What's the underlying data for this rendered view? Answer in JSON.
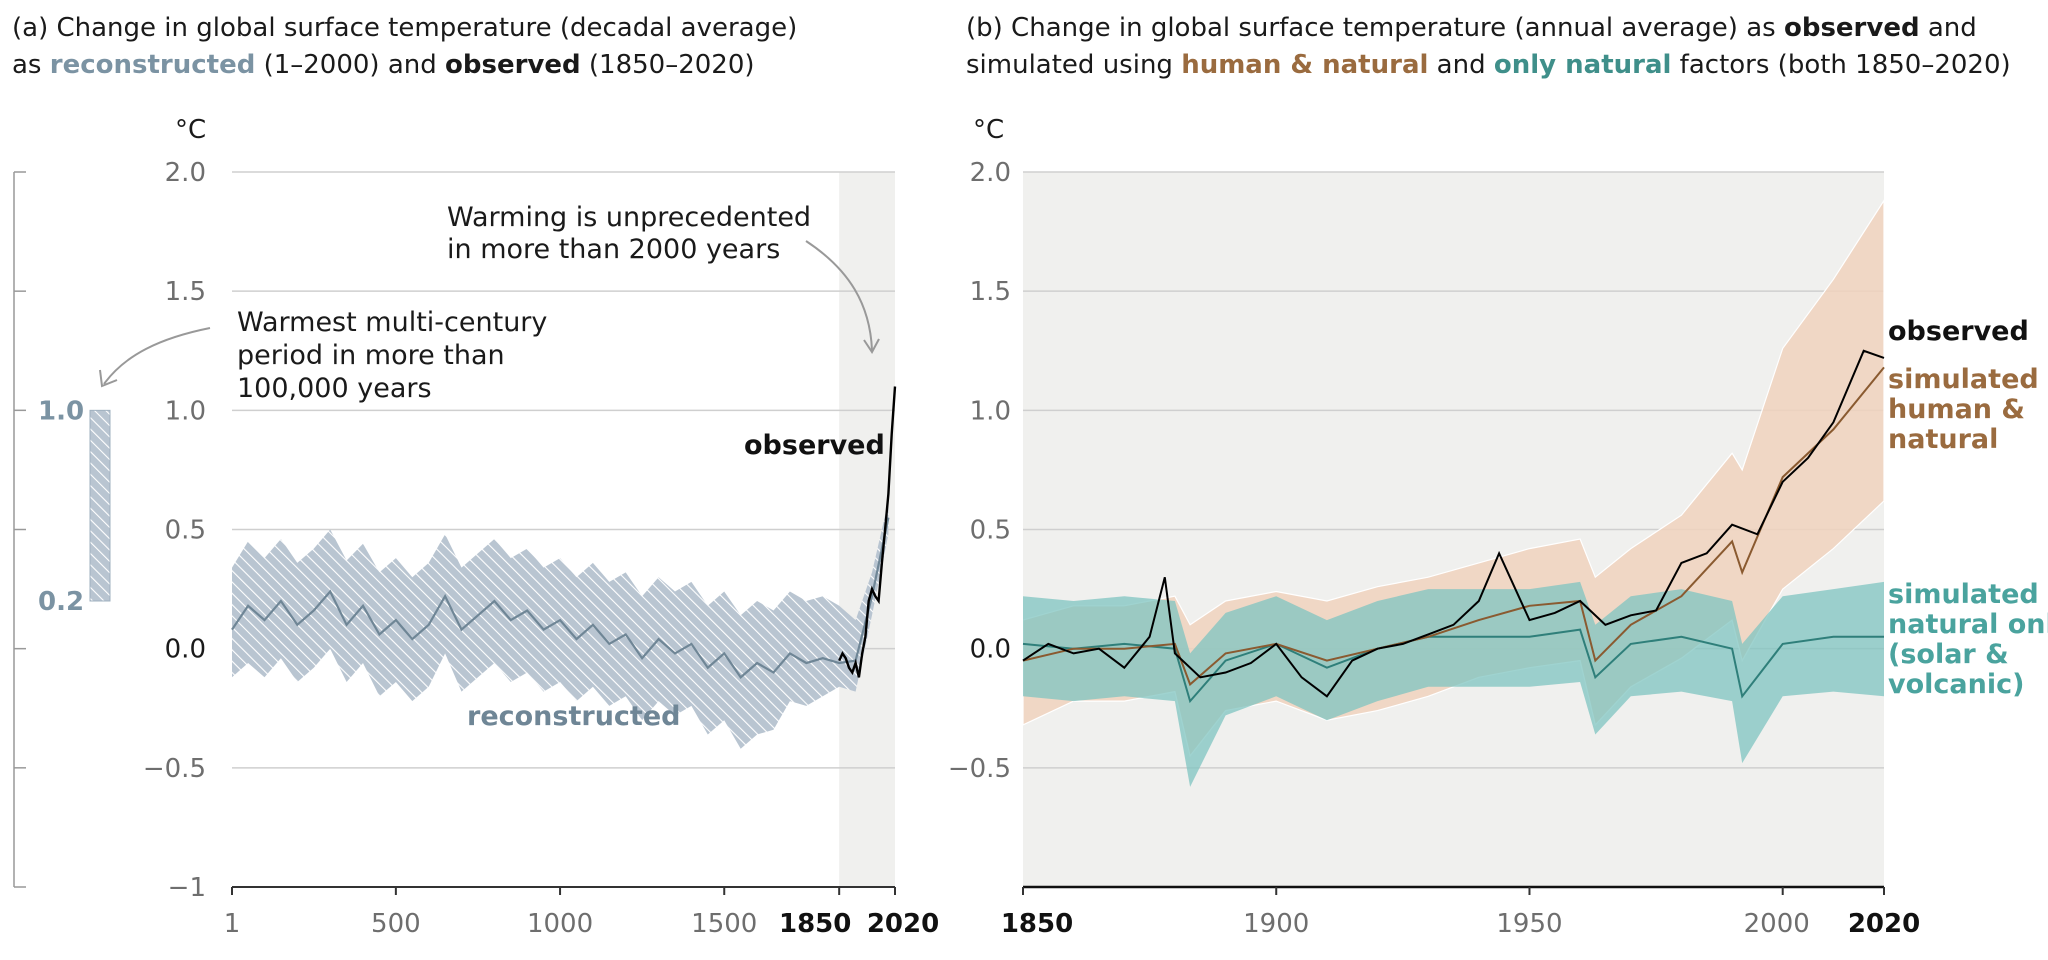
{
  "title_a": {
    "line1": "(a) Change in global surface temperature (decadal average)",
    "pre": "as ",
    "reconstructed": "reconstructed",
    "mid": " (1–2000) and ",
    "observed": "observed",
    "post": " (1850–2020)"
  },
  "title_b": {
    "line1_pre": "(b) Change in global surface temperature (annual average) as ",
    "observed": "observed",
    "line1_post": " and",
    "line2_pre": "simulated using ",
    "human_natural": "human & natural",
    "and": " and ",
    "only_natural": "only natural",
    "line2_post": " factors (both 1850–2020)"
  },
  "colors": {
    "reconstructed_line": "#6f8696",
    "reconstructed_band": "#b9c5d1",
    "observed": "#000000",
    "human_natural": "#8a5a30",
    "human_natural_band": "#f0d2bd",
    "natural": "#2f7f7a",
    "natural_band": "#7fc4c0",
    "shading": "#f0f0ee",
    "grid": "#cfcfcf"
  },
  "chart_data": [
    {
      "type": "line",
      "unit": "°C",
      "ylim": [
        -1,
        2
      ],
      "xlim": [
        1,
        2020
      ],
      "yticks": [
        -1,
        -0.5,
        0,
        0.5,
        1,
        1.5,
        2
      ],
      "ytick_labels": [
        "−1",
        "−0.5",
        "0.0",
        "0.5",
        "1.0",
        "1.5",
        "2.0"
      ],
      "xticks": [
        1,
        500,
        1000,
        1500,
        1850,
        2020
      ],
      "xtick_labels": [
        "1",
        "500",
        "1000",
        "1500",
        "1850",
        "2020"
      ],
      "shaded_range": [
        1850,
        2020
      ],
      "side_bar": {
        "range": [
          0.2,
          1.0
        ],
        "labels": [
          "1.0",
          "0.2"
        ]
      },
      "annotations": {
        "warming": [
          "Warming is unprecedented",
          "in more than 2000 years"
        ],
        "warmest": [
          "Warmest multi-century",
          "period in more than",
          "100,000 years"
        ],
        "observed_label": "observed",
        "reconstructed_label": "reconstructed"
      },
      "series": [
        {
          "name": "reconstructed",
          "x": [
            1,
            50,
            100,
            150,
            200,
            250,
            300,
            350,
            400,
            450,
            500,
            550,
            600,
            650,
            700,
            750,
            800,
            850,
            900,
            950,
            1000,
            1050,
            1100,
            1150,
            1200,
            1250,
            1300,
            1350,
            1400,
            1450,
            1500,
            1550,
            1600,
            1650,
            1700,
            1750,
            1800,
            1850,
            1900,
            1950,
            2000
          ],
          "values": [
            0.08,
            0.18,
            0.12,
            0.2,
            0.1,
            0.16,
            0.24,
            0.1,
            0.18,
            0.06,
            0.12,
            0.04,
            0.1,
            0.22,
            0.08,
            0.14,
            0.2,
            0.12,
            0.16,
            0.08,
            0.12,
            0.04,
            0.1,
            0.02,
            0.06,
            -0.04,
            0.04,
            -0.02,
            0.02,
            -0.08,
            -0.02,
            -0.12,
            -0.06,
            -0.1,
            -0.02,
            -0.06,
            -0.04,
            -0.06,
            -0.05,
            0.22,
            0.55
          ],
          "upper": [
            0.34,
            0.45,
            0.38,
            0.46,
            0.36,
            0.42,
            0.5,
            0.37,
            0.44,
            0.32,
            0.38,
            0.3,
            0.36,
            0.48,
            0.34,
            0.4,
            0.46,
            0.38,
            0.42,
            0.34,
            0.38,
            0.3,
            0.36,
            0.28,
            0.32,
            0.22,
            0.3,
            0.24,
            0.28,
            0.18,
            0.24,
            0.14,
            0.2,
            0.16,
            0.24,
            0.2,
            0.22,
            0.18,
            0.12,
            0.32,
            0.62
          ],
          "lower": [
            -0.12,
            -0.06,
            -0.12,
            -0.04,
            -0.14,
            -0.08,
            0.0,
            -0.14,
            -0.06,
            -0.2,
            -0.14,
            -0.22,
            -0.16,
            -0.02,
            -0.18,
            -0.12,
            -0.06,
            -0.14,
            -0.1,
            -0.18,
            -0.14,
            -0.22,
            -0.16,
            -0.24,
            -0.2,
            -0.3,
            -0.22,
            -0.28,
            -0.24,
            -0.36,
            -0.3,
            -0.42,
            -0.36,
            -0.34,
            -0.22,
            -0.24,
            -0.2,
            -0.16,
            -0.18,
            0.14,
            0.48
          ]
        },
        {
          "name": "observed",
          "x": [
            1850,
            1860,
            1870,
            1880,
            1890,
            1900,
            1910,
            1920,
            1930,
            1940,
            1950,
            1960,
            1970,
            1980,
            1990,
            2000,
            2010,
            2020
          ],
          "values": [
            -0.05,
            -0.02,
            -0.04,
            -0.08,
            -0.1,
            -0.06,
            -0.12,
            -0.02,
            0.05,
            0.2,
            0.25,
            0.22,
            0.2,
            0.36,
            0.5,
            0.65,
            0.9,
            1.1
          ]
        }
      ]
    },
    {
      "type": "line",
      "unit": "°C",
      "ylim": [
        -1,
        2
      ],
      "xlim": [
        1850,
        2020
      ],
      "yticks": [
        -0.5,
        0,
        0.5,
        1,
        1.5,
        2
      ],
      "ytick_labels": [
        "−0.5",
        "0.0",
        "0.5",
        "1.0",
        "1.5",
        "2.0"
      ],
      "xticks": [
        1850,
        1900,
        1950,
        2000,
        2020
      ],
      "xtick_labels": [
        "1850",
        "1900",
        "1950",
        "2000",
        "2020"
      ],
      "legend_labels": {
        "observed": "observed",
        "human_natural": [
          "simulated",
          "human &",
          "natural"
        ],
        "natural": [
          "simulated",
          "natural only",
          "(solar &",
          "volcanic)"
        ]
      },
      "series": [
        {
          "name": "observed",
          "x": [
            1850,
            1855,
            1860,
            1865,
            1870,
            1875,
            1878,
            1880,
            1885,
            1890,
            1895,
            1900,
            1905,
            1910,
            1915,
            1920,
            1925,
            1930,
            1935,
            1940,
            1944,
            1950,
            1955,
            1960,
            1965,
            1970,
            1975,
            1980,
            1985,
            1990,
            1995,
            2000,
            2005,
            2010,
            2016,
            2020
          ],
          "values": [
            -0.05,
            0.02,
            -0.02,
            0.0,
            -0.08,
            0.05,
            0.3,
            -0.02,
            -0.12,
            -0.1,
            -0.06,
            0.02,
            -0.12,
            -0.2,
            -0.05,
            0.0,
            0.02,
            0.06,
            0.1,
            0.2,
            0.4,
            0.12,
            0.15,
            0.2,
            0.1,
            0.14,
            0.16,
            0.36,
            0.4,
            0.52,
            0.48,
            0.7,
            0.8,
            0.95,
            1.25,
            1.22
          ]
        },
        {
          "name": "human & natural",
          "x": [
            1850,
            1860,
            1870,
            1880,
            1883,
            1890,
            1900,
            1910,
            1920,
            1930,
            1940,
            1950,
            1960,
            1963,
            1970,
            1980,
            1990,
            1992,
            2000,
            2010,
            2020
          ],
          "values": [
            -0.05,
            0.0,
            0.0,
            0.02,
            -0.15,
            -0.02,
            0.02,
            -0.05,
            0.0,
            0.05,
            0.12,
            0.18,
            0.2,
            -0.05,
            0.1,
            0.22,
            0.45,
            0.32,
            0.72,
            0.92,
            1.18
          ],
          "upper": [
            0.12,
            0.18,
            0.18,
            0.22,
            0.1,
            0.2,
            0.24,
            0.2,
            0.26,
            0.3,
            0.36,
            0.42,
            0.46,
            0.3,
            0.42,
            0.56,
            0.82,
            0.75,
            1.26,
            1.55,
            1.88
          ],
          "lower": [
            -0.32,
            -0.22,
            -0.22,
            -0.18,
            -0.45,
            -0.26,
            -0.22,
            -0.3,
            -0.26,
            -0.2,
            -0.12,
            -0.08,
            -0.05,
            -0.32,
            -0.16,
            -0.04,
            0.12,
            -0.05,
            0.25,
            0.42,
            0.62
          ]
        },
        {
          "name": "natural only",
          "x": [
            1850,
            1860,
            1870,
            1880,
            1883,
            1890,
            1900,
            1910,
            1920,
            1930,
            1940,
            1950,
            1960,
            1963,
            1970,
            1980,
            1990,
            1992,
            2000,
            2010,
            2020
          ],
          "values": [
            0.02,
            0.0,
            0.02,
            0.0,
            -0.22,
            -0.05,
            0.02,
            -0.08,
            0.0,
            0.05,
            0.05,
            0.05,
            0.08,
            -0.12,
            0.02,
            0.05,
            0.0,
            -0.2,
            0.02,
            0.05,
            0.05
          ],
          "upper": [
            0.22,
            0.2,
            0.22,
            0.2,
            -0.02,
            0.15,
            0.22,
            0.12,
            0.2,
            0.25,
            0.25,
            0.25,
            0.28,
            0.1,
            0.22,
            0.25,
            0.2,
            0.02,
            0.22,
            0.25,
            0.28
          ],
          "lower": [
            -0.2,
            -0.22,
            -0.2,
            -0.22,
            -0.58,
            -0.28,
            -0.2,
            -0.3,
            -0.22,
            -0.16,
            -0.16,
            -0.16,
            -0.14,
            -0.36,
            -0.2,
            -0.18,
            -0.22,
            -0.48,
            -0.2,
            -0.18,
            -0.2
          ]
        }
      ]
    }
  ]
}
